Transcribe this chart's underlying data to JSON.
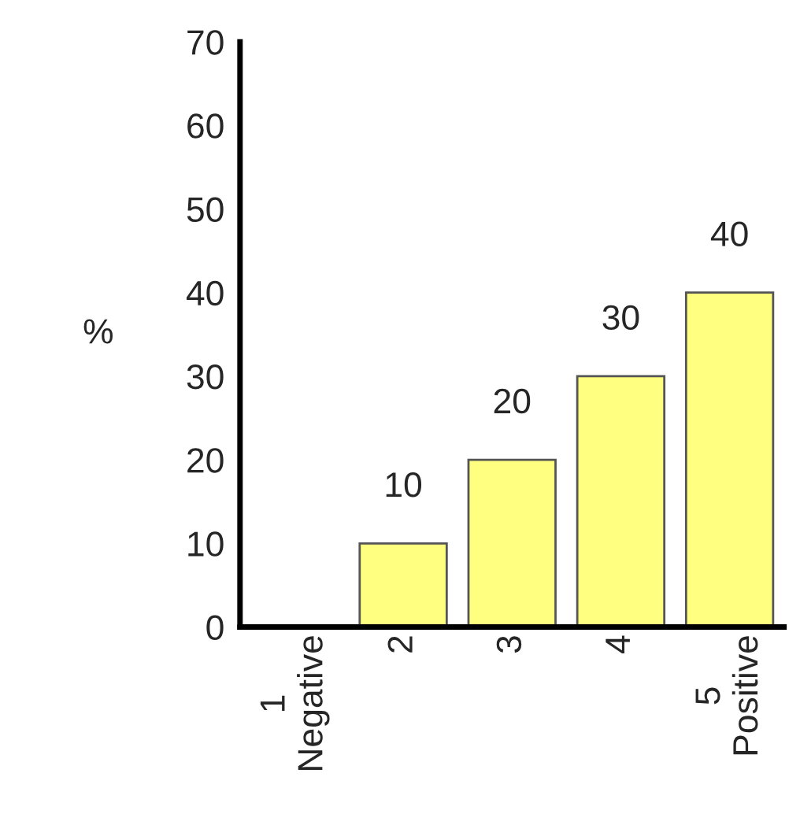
{
  "chart_data": {
    "type": "bar",
    "categories": [
      "1\nNegative",
      "2",
      "3",
      "4",
      "5\nPositive"
    ],
    "values": [
      0,
      10,
      20,
      30,
      40
    ],
    "value_labels": [
      null,
      "10",
      "20",
      "30",
      "40"
    ],
    "colors": [
      "#555555",
      "#ffff80",
      "#ffff80",
      "#ffff80",
      "#ffff80"
    ],
    "ylabel": "%",
    "ylim": [
      0,
      70
    ],
    "yticks": [
      0,
      10,
      20,
      30,
      40,
      50,
      60,
      70
    ],
    "grid": false,
    "legend": false
  }
}
